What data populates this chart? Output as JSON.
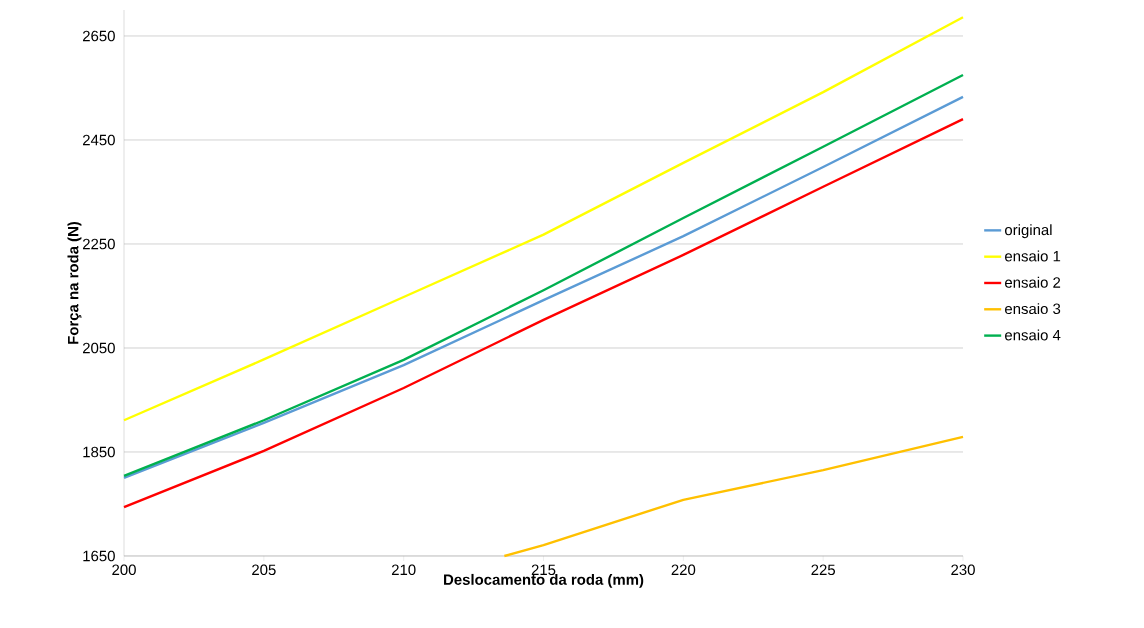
{
  "chart_data": {
    "type": "line",
    "xlabel": "Deslocamento da roda  (mm)",
    "ylabel": "Força na roda  (N)",
    "x": [
      200,
      205,
      210,
      215,
      220,
      225,
      230
    ],
    "series": [
      {
        "name": "original",
        "color": "#5b9bd5",
        "values": [
          1800,
          1906,
          2017,
          2142,
          2265,
          2398,
          2533
        ]
      },
      {
        "name": "ensaio 1",
        "color": "#ffff00",
        "values": [
          1911,
          2028,
          2148,
          2268,
          2406,
          2542,
          2686
        ]
      },
      {
        "name": "ensaio 2",
        "color": "#ff0000",
        "values": [
          1744,
          1852,
          1973,
          2104,
          2229,
          2360,
          2490
        ]
      },
      {
        "name": "ensaio 3",
        "color": "#ffc000",
        "x": [
          213.6,
          215,
          220,
          225,
          230
        ],
        "values": [
          1650,
          1671,
          1758,
          1815,
          1879
        ]
      },
      {
        "name": "ensaio 4",
        "color": "#00b050",
        "values": [
          1804,
          1911,
          2027,
          2161,
          2300,
          2437,
          2575
        ]
      }
    ],
    "xlim": [
      200,
      230
    ],
    "ylim": [
      1650,
      2700
    ],
    "xticks": [
      200,
      205,
      210,
      215,
      220,
      225,
      230
    ],
    "yticks": [
      1650,
      1850,
      2050,
      2250,
      2450,
      2650
    ],
    "grid": "y",
    "legend": "right",
    "marker": "none",
    "line_style": "solid"
  }
}
